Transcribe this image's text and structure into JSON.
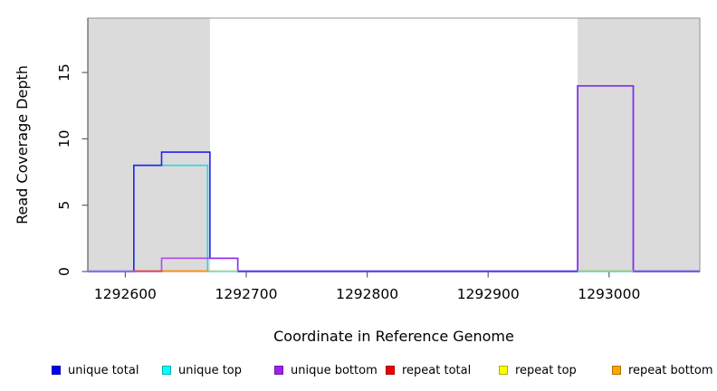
{
  "chart_data": {
    "type": "line",
    "subtype": "step-coverage",
    "title": "",
    "xlabel": "Coordinate in Reference Genome",
    "ylabel": "Read Coverage Depth",
    "xlim": [
      1292569,
      1293075
    ],
    "ylim": [
      0,
      19.1
    ],
    "xticks": [
      "1292600",
      "1292700",
      "1292800",
      "1292900",
      "1293000"
    ],
    "xtick_values": [
      1292600,
      1292700,
      1292800,
      1292900,
      1293000
    ],
    "yticks": [
      "0",
      "5",
      "10",
      "15"
    ],
    "ytick_values": [
      0,
      5,
      10,
      15
    ],
    "grid": false,
    "legend_position": "bottom",
    "masked_regions": [
      [
        1292569,
        1292670
      ],
      [
        1292974,
        1293075
      ]
    ],
    "masked_region_color": "#DBDBDB",
    "box_color": "#909090",
    "axis_color": "#404040",
    "tick_color": "#606060",
    "series": [
      {
        "name": "unique total",
        "color": "#2222EE",
        "opacity": 1.0,
        "steps": [
          [
            1292569,
            0
          ],
          [
            1292607,
            0
          ],
          [
            1292607,
            8
          ],
          [
            1292630,
            8
          ],
          [
            1292630,
            9
          ],
          [
            1292670,
            9
          ],
          [
            1292670,
            1
          ],
          [
            1292693,
            1
          ],
          [
            1292693,
            0
          ],
          [
            1292974,
            0
          ],
          [
            1292974,
            14
          ],
          [
            1293020,
            14
          ],
          [
            1293020,
            0
          ],
          [
            1293075,
            0
          ]
        ]
      },
      {
        "name": "unique top",
        "color": "#2ED4EE",
        "opacity": 1.0,
        "steps": [
          [
            1292569,
            0
          ],
          [
            1292607,
            0
          ],
          [
            1292607,
            8
          ],
          [
            1292668,
            8
          ],
          [
            1292668,
            0
          ],
          [
            1293075,
            0
          ]
        ]
      },
      {
        "name": "unique bottom",
        "color": "#A333F0",
        "opacity": 0.85,
        "steps": [
          [
            1292569,
            0
          ],
          [
            1292630,
            0
          ],
          [
            1292630,
            1
          ],
          [
            1292693,
            1
          ],
          [
            1292693,
            0
          ],
          [
            1292974,
            0
          ],
          [
            1292974,
            14
          ],
          [
            1293020,
            14
          ],
          [
            1293020,
            0
          ],
          [
            1293075,
            0
          ]
        ]
      },
      {
        "name": "repeat total",
        "color": "#E03040",
        "opacity": 1.0,
        "steps": [
          [
            1292569,
            0
          ],
          [
            1293075,
            0
          ]
        ]
      },
      {
        "name": "repeat top",
        "color": "#F0E840",
        "opacity": 1.0,
        "steps": [
          [
            1292569,
            0
          ],
          [
            1293075,
            0
          ]
        ]
      },
      {
        "name": "repeat bottom",
        "color": "#FF9012",
        "opacity": 1.0,
        "steps": [
          [
            1292569,
            0
          ],
          [
            1293075,
            0
          ]
        ]
      }
    ],
    "draw_order": [
      "unique top",
      "unique total",
      "unique bottom"
    ],
    "baseline_segments": [
      {
        "from": 1292569,
        "to": 1292607,
        "color": "#8F7CEC"
      },
      {
        "from": 1292607,
        "to": 1292631,
        "color": "#E04858"
      },
      {
        "from": 1292631,
        "to": 1292669,
        "color": "#FF9012"
      },
      {
        "from": 1292669,
        "to": 1292693,
        "color": "#A5D8A5"
      },
      {
        "from": 1292693,
        "to": 1292974,
        "color": "#5F42E6"
      },
      {
        "from": 1292974,
        "to": 1293020,
        "color": "#8FCB8F"
      },
      {
        "from": 1293020,
        "to": 1293075,
        "color": "#7A5CEA"
      }
    ]
  },
  "legend": {
    "items": [
      {
        "label": "unique total",
        "color": "#0000EE"
      },
      {
        "label": "unique top",
        "color": "#00FFFF"
      },
      {
        "label": "unique bottom",
        "color": "#A020F0"
      },
      {
        "label": "repeat total",
        "color": "#EE0000"
      },
      {
        "label": "repeat top",
        "color": "#FFFF00"
      },
      {
        "label": "repeat bottom",
        "color": "#FFA500"
      }
    ]
  }
}
